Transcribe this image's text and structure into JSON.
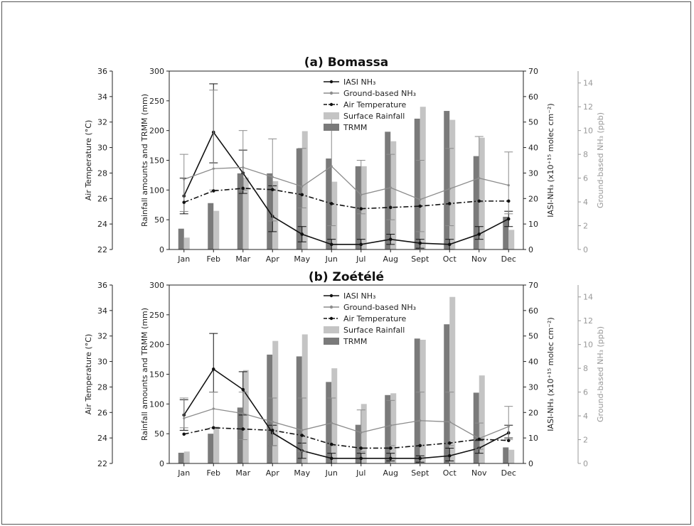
{
  "chart_data": [
    {
      "type": "bar",
      "title": "(a) Bomassa",
      "categories": [
        "Jan",
        "Feb",
        "Mar",
        "Apr",
        "May",
        "Jun",
        "Jul",
        "Aug",
        "Sept",
        "Oct",
        "Nov",
        "Dec"
      ],
      "left_axis": {
        "label": "Air Temperature (°C)",
        "ylim": [
          22,
          36
        ],
        "ticks": [
          22,
          24,
          26,
          28,
          30,
          32,
          34,
          36
        ]
      },
      "rain_axis": {
        "label": "Rainfall amounts and TRMM (mm)",
        "ylim": [
          0,
          300
        ],
        "ticks": [
          0,
          50,
          100,
          150,
          200,
          250,
          300
        ]
      },
      "iasi_axis": {
        "label": "IASI-NH₃ (x10⁺¹⁵ molec cm⁻²)",
        "ylim": [
          0,
          70
        ],
        "ticks": [
          0,
          10,
          20,
          30,
          40,
          50,
          60,
          70
        ]
      },
      "ground_axis": {
        "label": "Ground-based NH₃ (ppb)",
        "ylim": [
          0,
          15
        ],
        "ticks": [
          0,
          2,
          4,
          6,
          8,
          10,
          12,
          14
        ]
      },
      "legend": [
        "IASI NH₃",
        "Ground-based NH₃",
        "Air Temperature",
        "Surface Rainfall",
        "TRMM"
      ],
      "legend_position": "top-center",
      "series": [
        {
          "name": "TRMM",
          "axis": "rain",
          "kind": "bar",
          "color": "#7a7a7a",
          "values": [
            35,
            78,
            128,
            128,
            170,
            153,
            140,
            198,
            220,
            233,
            157,
            55
          ]
        },
        {
          "name": "Surface Rainfall",
          "axis": "rain",
          "kind": "bar",
          "color": "#c4c4c4",
          "values": [
            20,
            65,
            121,
            115,
            199,
            114,
            140,
            182,
            240,
            218,
            188,
            33
          ]
        },
        {
          "name": "IASI NH₃",
          "axis": "iasi",
          "kind": "line",
          "color": "#111111",
          "values": [
            21,
            46,
            30,
            13,
            6,
            2,
            2,
            4,
            2.5,
            2,
            6,
            12
          ],
          "errors": [
            [
              14,
              28
            ],
            [
              34,
              65
            ],
            [
              22,
              39
            ],
            [
              7,
              25
            ],
            [
              3,
              9
            ],
            [
              0,
              4
            ],
            [
              0,
              4
            ],
            [
              2,
              6
            ],
            [
              0.5,
              4
            ],
            [
              0,
              4
            ],
            [
              4,
              9
            ],
            [
              9,
              15
            ]
          ]
        },
        {
          "name": "Ground-based NH₃",
          "axis": "ground",
          "kind": "line",
          "color": "#8c8c8c",
          "values": [
            5.9,
            6.8,
            6.9,
            6.1,
            5.3,
            7,
            4.6,
            5.2,
            4.2,
            5.1,
            6,
            5.4
          ],
          "errors": [
            [
              3.2,
              8
            ],
            [
              5,
              13.4
            ],
            [
              5,
              10
            ],
            [
              2.4,
              9.3
            ],
            [
              3.5,
              8.5
            ],
            [
              2,
              11
            ],
            [
              3,
              7.5
            ],
            [
              2.5,
              8
            ],
            [
              1.5,
              7.5
            ],
            [
              2,
              8.5
            ],
            [
              4,
              9.5
            ],
            [
              3,
              8.2
            ]
          ]
        },
        {
          "name": "Air Temperature",
          "axis": "temp",
          "kind": "line",
          "style": "dash-dot",
          "color": "#111111",
          "values": [
            25.7,
            26.6,
            26.8,
            26.7,
            26.3,
            25.6,
            25.2,
            25.3,
            25.4,
            25.6,
            25.8,
            25.8
          ]
        }
      ]
    },
    {
      "type": "bar",
      "title": "(b) Zoétélé",
      "categories": [
        "Jan",
        "Feb",
        "Mar",
        "Apr",
        "May",
        "Jun",
        "Jul",
        "Aug",
        "Sept",
        "Oct",
        "Nov",
        "Dec"
      ],
      "left_axis": {
        "label": "Air Temperature (°C)",
        "ylim": [
          22,
          36
        ],
        "ticks": [
          22,
          24,
          26,
          28,
          30,
          32,
          34,
          36
        ]
      },
      "rain_axis": {
        "label": "Rainfall amounts and TRMM (mm)",
        "ylim": [
          0,
          300
        ],
        "ticks": [
          0,
          50,
          100,
          150,
          200,
          250,
          300
        ]
      },
      "iasi_axis": {
        "label": "IASI-NH₃ (x10⁺¹⁵ molec cm⁻²)",
        "ylim": [
          0,
          70
        ],
        "ticks": [
          0,
          10,
          20,
          30,
          40,
          50,
          60,
          70
        ]
      },
      "ground_axis": {
        "label": "Ground-based NH₃ (ppb)",
        "ylim": [
          0,
          15
        ],
        "ticks": [
          0,
          2,
          4,
          6,
          8,
          10,
          12,
          14
        ]
      },
      "legend": [
        "IASI NH₃",
        "Ground-based NH₃",
        "Air Temperature",
        "Surface Rainfall",
        "TRMM"
      ],
      "legend_position": "top-center",
      "series": [
        {
          "name": "TRMM",
          "axis": "rain",
          "kind": "bar",
          "color": "#7a7a7a",
          "values": [
            18,
            50,
            94,
            183,
            180,
            137,
            65,
            115,
            210,
            234,
            119,
            27
          ]
        },
        {
          "name": "Surface Rainfall",
          "axis": "rain",
          "kind": "bar",
          "color": "#c4c4c4",
          "values": [
            20,
            62,
            157,
            206,
            217,
            160,
            100,
            118,
            208,
            280,
            148,
            23
          ]
        },
        {
          "name": "IASI NH₃",
          "axis": "iasi",
          "kind": "line",
          "color": "#111111",
          "values": [
            19,
            37,
            29,
            12,
            5,
            2,
            2,
            2,
            2,
            3,
            6,
            12
          ],
          "errors": [
            [
              13,
              25
            ],
            [
              28,
              51
            ],
            [
              19,
              36
            ],
            [
              7,
              15
            ],
            [
              2,
              8
            ],
            [
              0,
              4
            ],
            [
              0,
              4
            ],
            [
              1,
              4
            ],
            [
              0.5,
              3
            ],
            [
              1,
              6
            ],
            [
              4,
              9
            ],
            [
              10,
              15
            ]
          ]
        },
        {
          "name": "Ground-based NH₃",
          "axis": "ground",
          "kind": "line",
          "color": "#8c8c8c",
          "values": [
            3.8,
            4.6,
            4.2,
            3.5,
            2.8,
            3.4,
            2.6,
            3.2,
            3.6,
            3.5,
            2.1,
            3.1
          ],
          "errors": [
            [
              3,
              5.5
            ],
            [
              3,
              6
            ],
            [
              2,
              6
            ],
            [
              1.5,
              5.5
            ],
            [
              1,
              5.5
            ],
            [
              1.5,
              5.5
            ],
            [
              1,
              4.5
            ],
            [
              1.5,
              5.3
            ],
            [
              1.5,
              6
            ],
            [
              1.5,
              6
            ],
            [
              1.2,
              3.4
            ],
            [
              2,
              4.8
            ]
          ]
        },
        {
          "name": "Air Temperature",
          "axis": "temp",
          "kind": "line",
          "style": "dash-dot",
          "color": "#111111",
          "values": [
            24.3,
            24.8,
            24.7,
            24.6,
            24.2,
            23.5,
            23.2,
            23.2,
            23.4,
            23.6,
            23.9,
            23.8
          ]
        }
      ]
    }
  ]
}
